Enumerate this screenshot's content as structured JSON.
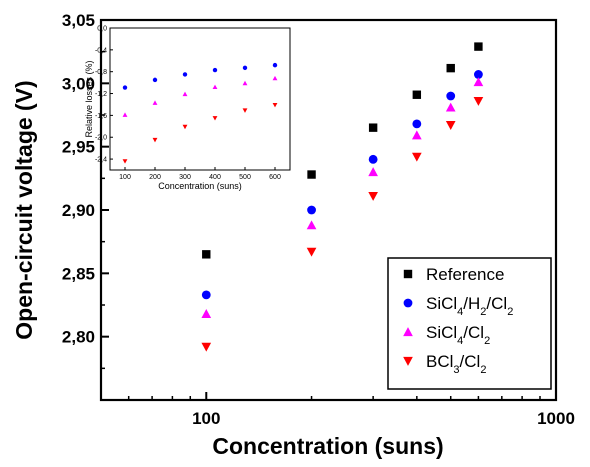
{
  "chart_data": [
    {
      "type": "scatter",
      "title": "",
      "xlabel": "Concentration (suns)",
      "ylabel": "Open-circuit voltage (V)",
      "xscale": "log",
      "xlim": [
        50,
        1000
      ],
      "ylim": [
        2.75,
        3.05
      ],
      "x_tick_values": [
        100,
        1000
      ],
      "x_tick_labels": [
        "100",
        "1000"
      ],
      "y_tick_values": [
        2.8,
        2.85,
        2.9,
        2.95,
        3.0,
        3.05
      ],
      "y_tick_labels": [
        "2,80",
        "2,85",
        "2,90",
        "2,95",
        "3,00",
        "3,05"
      ],
      "legend_position": "bottom-right",
      "legend_entries": [
        {
          "label": "Reference",
          "sub": "",
          "suffix": ""
        },
        {
          "label": "SiCl",
          "sub": "4",
          "suffix": "/H",
          "sub2": "2",
          "suffix2": "/Cl",
          "sub3": "2"
        },
        {
          "label": "SiCl",
          "sub": "4",
          "suffix": "/Cl",
          "sub2": "2",
          "suffix2": "",
          "sub3": ""
        },
        {
          "label": "BCl",
          "sub": "3",
          "suffix": "/Cl",
          "sub2": "2",
          "suffix2": "",
          "sub3": ""
        }
      ],
      "x": [
        100,
        200,
        300,
        400,
        500,
        600
      ],
      "series": [
        {
          "name": "Reference",
          "marker": "square",
          "color": "#000000",
          "values": [
            2.865,
            2.928,
            2.965,
            2.991,
            3.012,
            3.029
          ]
        },
        {
          "name": "SiCl4/H2/Cl2",
          "marker": "circle",
          "color": "#0000ff",
          "values": [
            2.833,
            2.9,
            2.94,
            2.968,
            2.99,
            3.007
          ]
        },
        {
          "name": "SiCl4/Cl2",
          "marker": "triangle-up",
          "color": "#ff00ff",
          "values": [
            2.818,
            2.888,
            2.93,
            2.959,
            2.981,
            3.001
          ]
        },
        {
          "name": "BCl3/Cl2",
          "marker": "triangle-down",
          "color": "#ff0000",
          "values": [
            2.792,
            2.867,
            2.911,
            2.942,
            2.967,
            2.986
          ]
        }
      ]
    },
    {
      "type": "scatter",
      "title": "",
      "xlabel": "Concentration (suns)",
      "ylabel": "Relative losses (%)",
      "xlim": [
        50,
        650
      ],
      "ylim": [
        -2.6,
        0.0
      ],
      "x_tick_values": [
        100,
        200,
        300,
        400,
        500,
        600
      ],
      "x_tick_labels": [
        "100",
        "200",
        "300",
        "400",
        "500",
        "600"
      ],
      "y_tick_values": [
        0.0,
        -0.4,
        -0.8,
        -1.2,
        -1.6,
        -2.0,
        -2.4
      ],
      "y_tick_labels": [
        "0,0",
        "-0,4",
        "-0,8",
        "-1,2",
        "-1,6",
        "-2,0",
        "-2,4"
      ],
      "x": [
        100,
        200,
        300,
        400,
        500,
        600
      ],
      "series": [
        {
          "name": "SiCl4/H2/Cl2",
          "marker": "circle",
          "color": "#0000ff",
          "values": [
            -1.09,
            -0.95,
            -0.85,
            -0.77,
            -0.73,
            -0.68
          ]
        },
        {
          "name": "SiCl4/Cl2",
          "marker": "triangle-up",
          "color": "#ff00ff",
          "values": [
            -1.59,
            -1.37,
            -1.21,
            -1.08,
            -1.01,
            -0.92
          ]
        },
        {
          "name": "BCl3/Cl2",
          "marker": "triangle-down",
          "color": "#ff0000",
          "values": [
            -2.44,
            -2.05,
            -1.81,
            -1.65,
            -1.51,
            -1.41
          ]
        }
      ]
    }
  ]
}
